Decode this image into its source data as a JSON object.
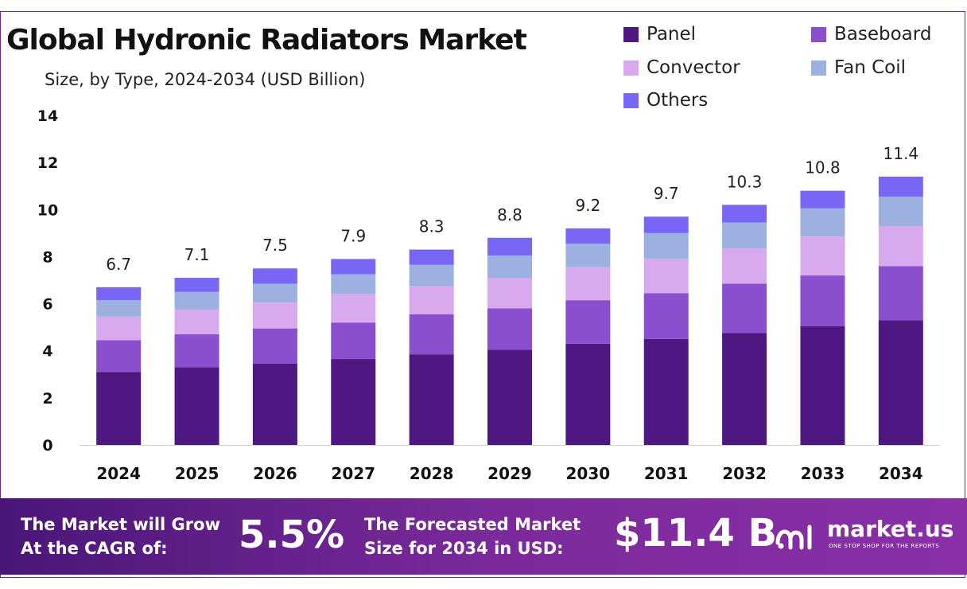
{
  "title": "Global Hydronic Radiators Market",
  "subtitle": "Size, by Type, 2024-2034 (USD Billion)",
  "colors": {
    "Panel": "#4e1782",
    "Baseboard": "#8a4ecf",
    "Convector": "#d9a9ee",
    "Fan Coil": "#9cb1df",
    "Others": "#7767f4"
  },
  "legend": [
    "Panel",
    "Baseboard",
    "Convector",
    "Fan Coil",
    "Others"
  ],
  "chart_data": {
    "type": "bar",
    "stacked": true,
    "categories": [
      "2024",
      "2025",
      "2026",
      "2027",
      "2028",
      "2029",
      "2030",
      "2031",
      "2032",
      "2033",
      "2034"
    ],
    "series": [
      {
        "name": "Panel",
        "values": [
          3.1,
          3.3,
          3.45,
          3.65,
          3.85,
          4.05,
          4.3,
          4.5,
          4.75,
          5.05,
          5.3
        ]
      },
      {
        "name": "Baseboard",
        "values": [
          1.35,
          1.4,
          1.5,
          1.55,
          1.7,
          1.75,
          1.85,
          1.95,
          2.1,
          2.15,
          2.3
        ]
      },
      {
        "name": "Convector",
        "values": [
          1.0,
          1.05,
          1.1,
          1.2,
          1.2,
          1.3,
          1.4,
          1.45,
          1.5,
          1.65,
          1.7
        ]
      },
      {
        "name": "Fan Coil",
        "values": [
          0.7,
          0.75,
          0.8,
          0.85,
          0.9,
          0.95,
          1.0,
          1.1,
          1.1,
          1.2,
          1.25
        ]
      },
      {
        "name": "Others",
        "values": [
          0.55,
          0.6,
          0.65,
          0.65,
          0.65,
          0.75,
          0.65,
          0.7,
          0.75,
          0.75,
          0.85
        ]
      }
    ],
    "totals": [
      "6.7",
      "7.1",
      "7.5",
      "7.9",
      "8.3",
      "8.8",
      "9.2",
      "9.7",
      "10.3",
      "10.8",
      "11.4"
    ],
    "ylim": [
      0,
      14
    ],
    "yticks": [
      0,
      2,
      4,
      6,
      8,
      10,
      12,
      14
    ],
    "grid": false,
    "legend_position": "top-right"
  },
  "footer": {
    "cagr_line1": "The Market will Grow",
    "cagr_line2": "At the CAGR of:",
    "cagr_value": "5.5%",
    "forecast_line1": "The Forecasted Market",
    "forecast_line2": "Size for 2034 in USD:",
    "forecast_value": "$11.4 B",
    "brand": "market.us",
    "tagline": "ONE STOP SHOP FOR THE REPORTS"
  }
}
